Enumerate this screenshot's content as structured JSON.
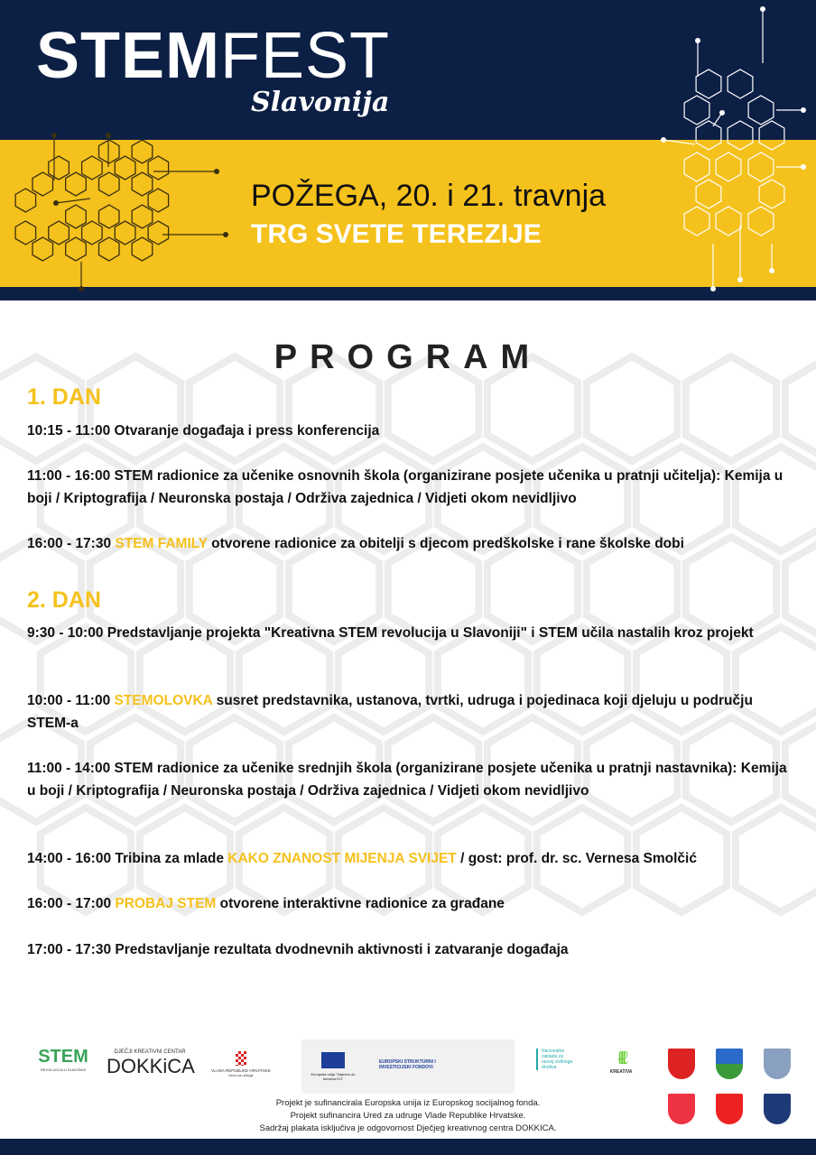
{
  "header": {
    "logo_main_bold": "STEM",
    "logo_main_thin": "FEST",
    "logo_sub": "Slavonija",
    "place_date": "POŽEGA, 20. i 21. travnja",
    "venue": "TRG SVETE TEREZIJE"
  },
  "colors": {
    "navy": "#0c1f45",
    "yellow": "#f5c11c"
  },
  "program": {
    "title": "PROGRAM",
    "day1": {
      "label": "1. DAN",
      "items": [
        {
          "text": "10:15 - 11:00 Otvaranje događaja i press konferencija"
        },
        {
          "text": "11:00 - 16:00 STEM radionice za učenike osnovnih škola (organizirane posjete učenika u pratnji učitelja): Kemija u boji / Kriptografija / Neuronska postaja / Održiva zajednica / Vidjeti okom nevidljivo"
        },
        {
          "pre": "16:00 - 17:30 ",
          "hl": "STEM FAMILY",
          "post": " otvorene radionice za obitelji s djecom predškolske i rane školske dobi"
        }
      ]
    },
    "day2": {
      "label": "2. DAN",
      "items": [
        {
          "text": "9:30 - 10:00 Predstavljanje projekta \"Kreativna STEM revolucija u Slavoniji\" i STEM učila nastalih kroz projekt"
        },
        {
          "pre": "10:00 - 11:00 ",
          "hl": "STEMOLOVKA",
          "post": "  susret predstavnika, ustanova, tvrtki, udruga i pojedinaca koji djeluju u području STEM-a"
        },
        {
          "text": "11:00 - 14:00 STEM radionice za učenike srednjih škola (organizirane posjete učenika u pratnji nastavnika): Kemija u boji / Kriptografija / Neuronska postaja / Održiva zajednica / Vidjeti okom nevidljivo"
        },
        {
          "pre": "14:00 - 16:00 Tribina za mlade ",
          "hl": "KAKO ZNANOST MIJENJA SVIJET",
          "post": " / gost: prof. dr. sc. Vernesa Smolčić"
        },
        {
          "pre": "16:00 - 17:00 ",
          "hl": "PROBAJ STEM",
          "post": " otvorene interaktivne radionice za građane"
        },
        {
          "text": "17:00 - 17:30 Predstavljanje rezultata dvodnevnih aktivnosti i zatvaranje događaja"
        }
      ]
    }
  },
  "footer": {
    "logos": {
      "stem": "STEM",
      "stem_small": "REVOLUCIJA U SLAVONIJI",
      "dokkica_top": "DJEČJI KREATIVNI CENTAR",
      "dokkica": "DOKKiCA",
      "vlada": "VLADA REPUBLIKE HRVATSKE",
      "vlada_sub": "Ured za udruge",
      "eu": "Europska unija \"Zajedno do fondova EU\"",
      "esif": "EUROPSKI STRUKTURNI I INVESTICIJSKI FONDOVI",
      "nzrcd": "Nacionalna zaklada za razvoj civilnoga društva",
      "kreativa": "KREATIVA"
    },
    "lines": [
      "Projekt je sufinancirala Europska unija iz Europskog socijalnog fonda.",
      "Projekt sufinancira Ured za udruge Vlade Republike Hrvatske.",
      "Sadržaj plakata isključiva je odgovornost Dječjeg kreativnog centra DOKKICA."
    ]
  }
}
